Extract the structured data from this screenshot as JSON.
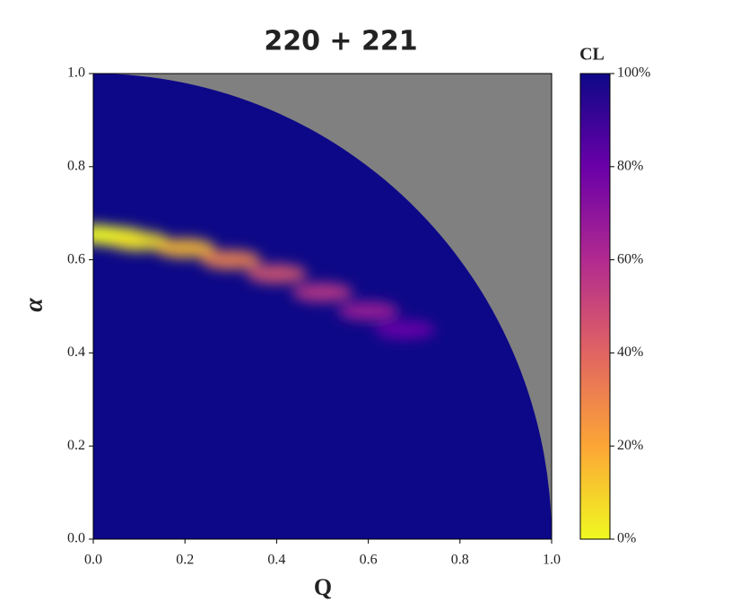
{
  "chart_data": {
    "type": "heatmap",
    "title": "220 + 221",
    "x_label": "Q",
    "y_label": "α",
    "colorbar_label": "CL",
    "xlim": [
      0,
      1
    ],
    "ylim": [
      0,
      1
    ],
    "xticks": [
      {
        "value": 0,
        "label": "0.0"
      },
      {
        "value": 0.2,
        "label": "0.2"
      },
      {
        "value": 0.4,
        "label": "0.4"
      },
      {
        "value": 0.6,
        "label": "0.6"
      },
      {
        "value": 0.8,
        "label": "0.8"
      },
      {
        "value": 1,
        "label": "1.0"
      }
    ],
    "yticks": [
      {
        "value": 0,
        "label": "0.0"
      },
      {
        "value": 0.2,
        "label": "0.2"
      },
      {
        "value": 0.4,
        "label": "0.4"
      },
      {
        "value": 0.6,
        "label": "0.6"
      },
      {
        "value": 0.8,
        "label": "0.8"
      },
      {
        "value": 1,
        "label": "1.0"
      }
    ],
    "clim": [
      0,
      100
    ],
    "cticks": [
      {
        "value": 0,
        "label": "0%"
      },
      {
        "value": 20,
        "label": "20%"
      },
      {
        "value": 40,
        "label": "40%"
      },
      {
        "value": 60,
        "label": "60%"
      },
      {
        "value": 80,
        "label": "80%"
      },
      {
        "value": 100,
        "label": "100%"
      }
    ],
    "colormap": [
      "#f0f921",
      "#fca636",
      "#e16462",
      "#b12a90",
      "#6a00a8",
      "#0d0887"
    ],
    "excluded_color": "#808080",
    "x": [
      0.0,
      0.05,
      0.1,
      0.2,
      0.3,
      0.4,
      0.5,
      0.6,
      0.68
    ],
    "y": [
      0.655,
      0.65,
      0.64,
      0.625,
      0.6,
      0.57,
      0.53,
      0.49,
      0.45
    ],
    "values": [
      0,
      0,
      5,
      15,
      30,
      45,
      55,
      65,
      80
    ]
  }
}
